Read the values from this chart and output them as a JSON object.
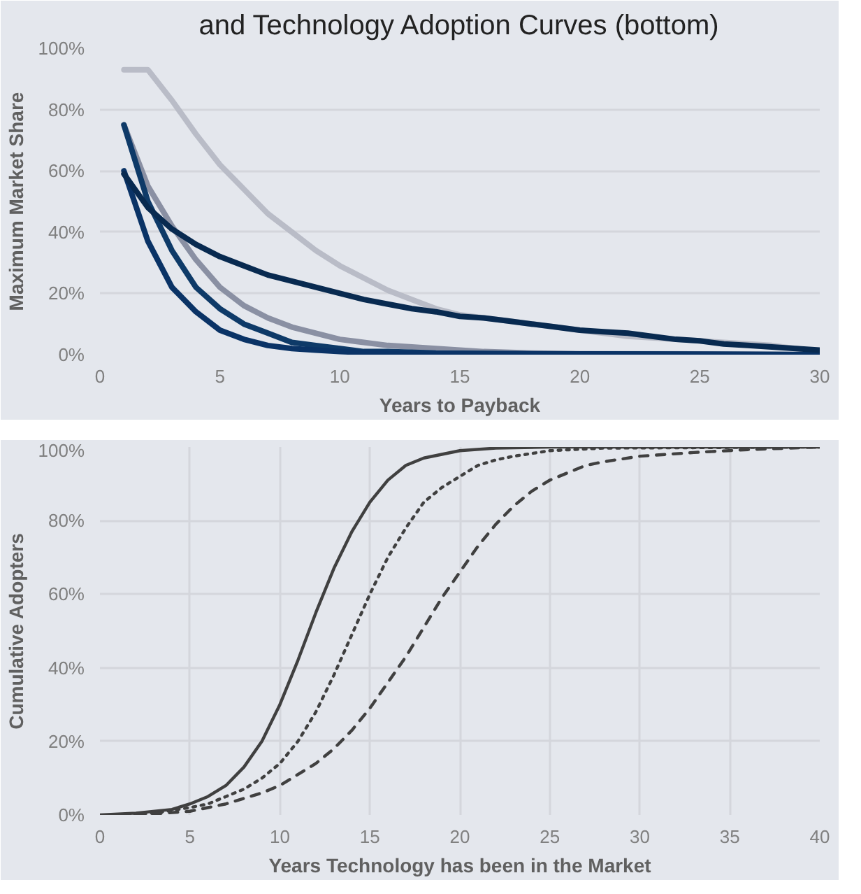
{
  "chart_data": [
    {
      "type": "line",
      "title": "and Technology Adoption Curves (bottom)",
      "xlabel": "Years to Payback",
      "ylabel": "Maximum Market Share",
      "xlim": [
        0,
        30
      ],
      "xticks": [
        0,
        5,
        10,
        15,
        20,
        25,
        30
      ],
      "ylim": [
        0,
        100
      ],
      "yticks": [
        {
          "value": 0,
          "label": "0%"
        },
        {
          "value": 20,
          "label": "20%"
        },
        {
          "value": 40,
          "label": "40%"
        },
        {
          "value": 60,
          "label": "60%"
        },
        {
          "value": 80,
          "label": "80%"
        },
        {
          "value": 100,
          "label": "100%"
        }
      ],
      "grid": "y",
      "series": [
        {
          "color": "#b9bcc7",
          "x": [
            1,
            2,
            3,
            4,
            5,
            6,
            7,
            8,
            9,
            10,
            11,
            12,
            13,
            14,
            15,
            16,
            17,
            18,
            19,
            20,
            22,
            24,
            26,
            28,
            30
          ],
          "values": [
            93,
            93,
            83,
            72,
            62,
            54,
            46,
            40,
            34,
            29,
            25,
            21,
            18,
            15,
            13,
            12,
            11,
            10,
            9,
            8,
            6,
            5,
            4,
            3,
            1
          ]
        },
        {
          "color": "#8a90a3",
          "x": [
            1,
            2,
            3,
            4,
            5,
            6,
            7,
            8,
            9,
            10,
            11,
            12,
            13,
            14,
            15,
            16,
            18,
            20,
            25,
            30
          ],
          "values": [
            75,
            55,
            42,
            31,
            22,
            16,
            12,
            9,
            7,
            5,
            4,
            3,
            2.5,
            2,
            1.5,
            1,
            0.5,
            0.3,
            0.2,
            0
          ]
        },
        {
          "color": "#0e3a68",
          "x": [
            1,
            2,
            3,
            4,
            5,
            6,
            7,
            8,
            9,
            10,
            11,
            12,
            14,
            20,
            25,
            30
          ],
          "values": [
            75,
            50,
            34,
            22,
            15,
            10,
            7,
            4,
            3,
            2,
            1,
            1,
            0.5,
            0.2,
            0.1,
            0
          ]
        },
        {
          "color": "#0a3366",
          "x": [
            1,
            2,
            3,
            4,
            5,
            6,
            7,
            8,
            9,
            10,
            12,
            15,
            20,
            25,
            30
          ],
          "values": [
            60,
            37,
            22,
            14,
            8,
            5,
            3,
            2,
            1.5,
            1,
            0.5,
            0.3,
            0.2,
            0.1,
            0
          ]
        },
        {
          "color": "#082a50",
          "x": [
            1,
            2,
            3,
            4,
            5,
            6,
            7,
            8,
            9,
            10,
            11,
            12,
            13,
            14,
            15,
            16,
            17,
            18,
            19,
            20,
            21,
            22,
            23,
            24,
            25,
            26,
            27,
            28,
            29,
            30
          ],
          "values": [
            59,
            48,
            41,
            36,
            32,
            29,
            26,
            24,
            22,
            20,
            18,
            16.5,
            15,
            14,
            12.5,
            12,
            11,
            10,
            9,
            8,
            7.5,
            7,
            6,
            5,
            4.5,
            3.5,
            3,
            2.5,
            2,
            1.5
          ]
        }
      ]
    },
    {
      "type": "line",
      "xlabel": "Years Technology has been in the Market",
      "ylabel": "Cumulative Adopters",
      "xlim": [
        0,
        40
      ],
      "xticks": [
        0,
        5,
        10,
        15,
        20,
        25,
        30,
        35,
        40
      ],
      "ylim": [
        0,
        100
      ],
      "yticks": [
        {
          "value": 0,
          "label": "0%"
        },
        {
          "value": 20,
          "label": "20%"
        },
        {
          "value": 40,
          "label": "40%"
        },
        {
          "value": 60,
          "label": "60%"
        },
        {
          "value": 80,
          "label": "80%"
        },
        {
          "value": 100,
          "label": "100%"
        }
      ],
      "grid": true,
      "series": [
        {
          "color": "#404040",
          "line_style": "solid",
          "x": [
            0,
            2,
            4,
            5,
            6,
            7,
            8,
            9,
            10,
            11,
            12,
            13,
            14,
            15,
            16,
            17,
            18,
            19,
            20,
            22,
            25,
            40
          ],
          "values": [
            0,
            0.5,
            1.5,
            3,
            5,
            8,
            13,
            20,
            30,
            42,
            55,
            67,
            77,
            85,
            91,
            95,
            97,
            98,
            99,
            99.7,
            100,
            100
          ]
        },
        {
          "color": "#404040",
          "line_style": "dotted",
          "x": [
            1,
            3,
            5,
            6,
            7,
            8,
            9,
            10,
            11,
            12,
            13,
            14,
            15,
            16,
            17,
            18,
            19,
            20,
            21,
            22,
            23,
            25,
            28,
            40
          ],
          "values": [
            0.1,
            0.5,
            2,
            3,
            5,
            7,
            10,
            14,
            20,
            28,
            38,
            49,
            60,
            70,
            78,
            85,
            89,
            92,
            95,
            96.5,
            97.5,
            99,
            99.7,
            100
          ]
        },
        {
          "color": "#404040",
          "line_style": "dashed",
          "x": [
            2,
            3,
            5,
            6,
            7,
            8,
            9,
            10,
            11,
            12,
            13,
            14,
            15,
            16,
            17,
            18,
            19,
            20,
            21,
            22,
            23,
            24,
            25,
            26,
            27,
            28,
            30,
            33,
            36,
            40
          ],
          "values": [
            0.1,
            0.3,
            1,
            2,
            3,
            4.5,
            6,
            8,
            11,
            14,
            18,
            23,
            29,
            36,
            43,
            51,
            59,
            66,
            73,
            79,
            84,
            88,
            91,
            93,
            95,
            96,
            97.5,
            98.5,
            99.3,
            100
          ]
        }
      ]
    }
  ]
}
